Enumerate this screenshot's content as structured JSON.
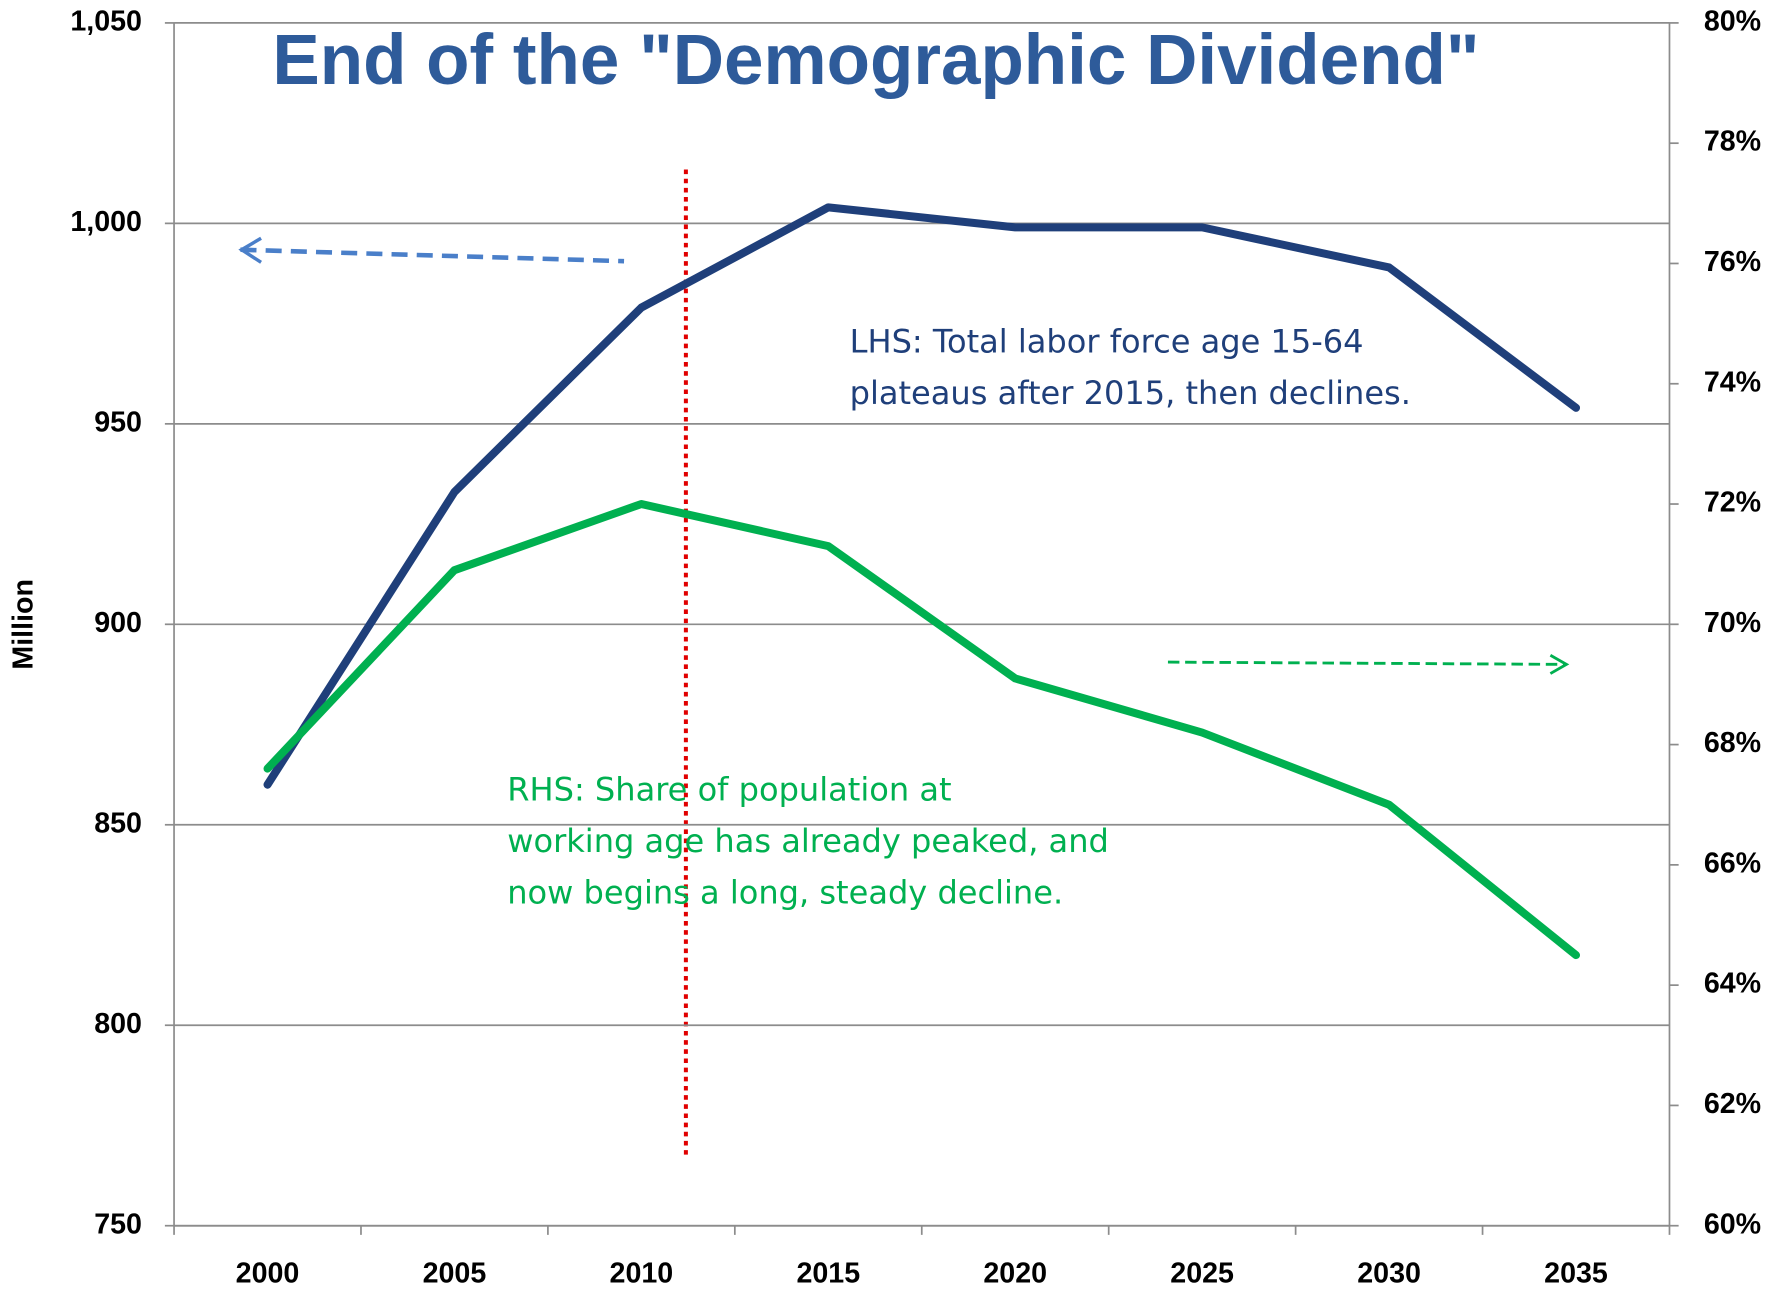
{
  "chart_data": {
    "type": "line",
    "title": "End of the \"Demographic Dividend\"",
    "y_label": "Million",
    "categories": [
      "2000",
      "2005",
      "2010",
      "2015",
      "2020",
      "2025",
      "2030",
      "2035"
    ],
    "series": [
      {
        "name": "Total labor force age 15-64",
        "color": "#1f3f7a",
        "axis": "y",
        "values": [
          860,
          933,
          979,
          1004,
          999,
          999,
          989,
          954
        ]
      },
      {
        "name": "Share of population at working age",
        "color": "#00b050",
        "axis": "y2",
        "values": [
          67.6,
          70.9,
          72.0,
          71.3,
          69.1,
          68.2,
          67.0,
          64.5
        ]
      }
    ],
    "ylim": [
      750,
      1050
    ],
    "yticks": [
      {
        "value": 750,
        "label": "750"
      },
      800,
      850,
      900,
      950,
      {
        "value": 1000,
        "label": "1,000"
      },
      {
        "value": 1050,
        "label": "1,050"
      }
    ],
    "y2lim": [
      60,
      80
    ],
    "y2ticks": [
      {
        "value": 60,
        "label": "60%"
      },
      {
        "value": 62,
        "label": "62%"
      },
      {
        "value": 64,
        "label": "64%"
      },
      {
        "value": 66,
        "label": "66%"
      },
      {
        "value": 68,
        "label": "68%"
      },
      {
        "value": 70,
        "label": "70%"
      },
      {
        "value": 72,
        "label": "72%"
      },
      {
        "value": 74,
        "label": "74%"
      },
      {
        "value": 76,
        "label": "76%"
      },
      {
        "value": 78,
        "label": "78%"
      },
      {
        "value": 80,
        "label": "80%"
      }
    ],
    "grid": true,
    "annotations": [
      {
        "color": "#1f3f7a",
        "lines": [
          "LHS: Total labor force age 15-64",
          "plateaus after 2015, then declines."
        ]
      },
      {
        "color": "#00b050",
        "lines": [
          "RHS: Share of population at",
          "working age has already peaked, and",
          "now begins a long, steady decline."
        ]
      }
    ]
  }
}
